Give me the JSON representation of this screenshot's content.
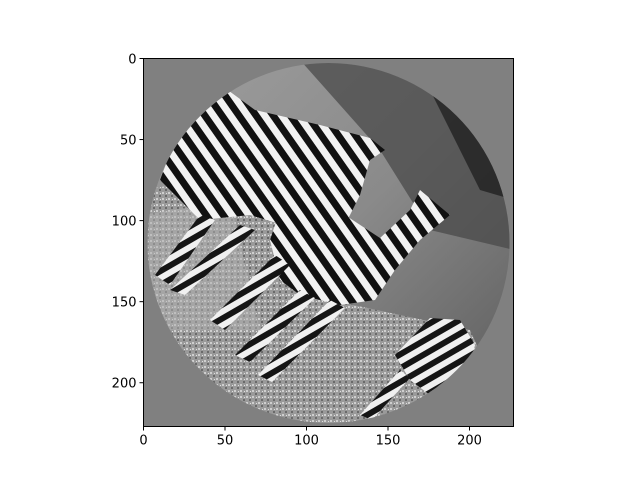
{
  "image": {
    "description_color": "grayscale",
    "mask_shape": "circle",
    "background_fill": "#808080"
  },
  "axes": {
    "xlim": [
      0,
      227
    ],
    "ylim": [
      227,
      0
    ],
    "xticks": [
      0,
      50,
      100,
      150,
      200
    ],
    "yticks": [
      0,
      50,
      100,
      150,
      200
    ],
    "xtick_labels": [
      "0",
      "50",
      "100",
      "150",
      "200"
    ],
    "ytick_labels": [
      "0",
      "50",
      "100",
      "150",
      "200"
    ]
  }
}
